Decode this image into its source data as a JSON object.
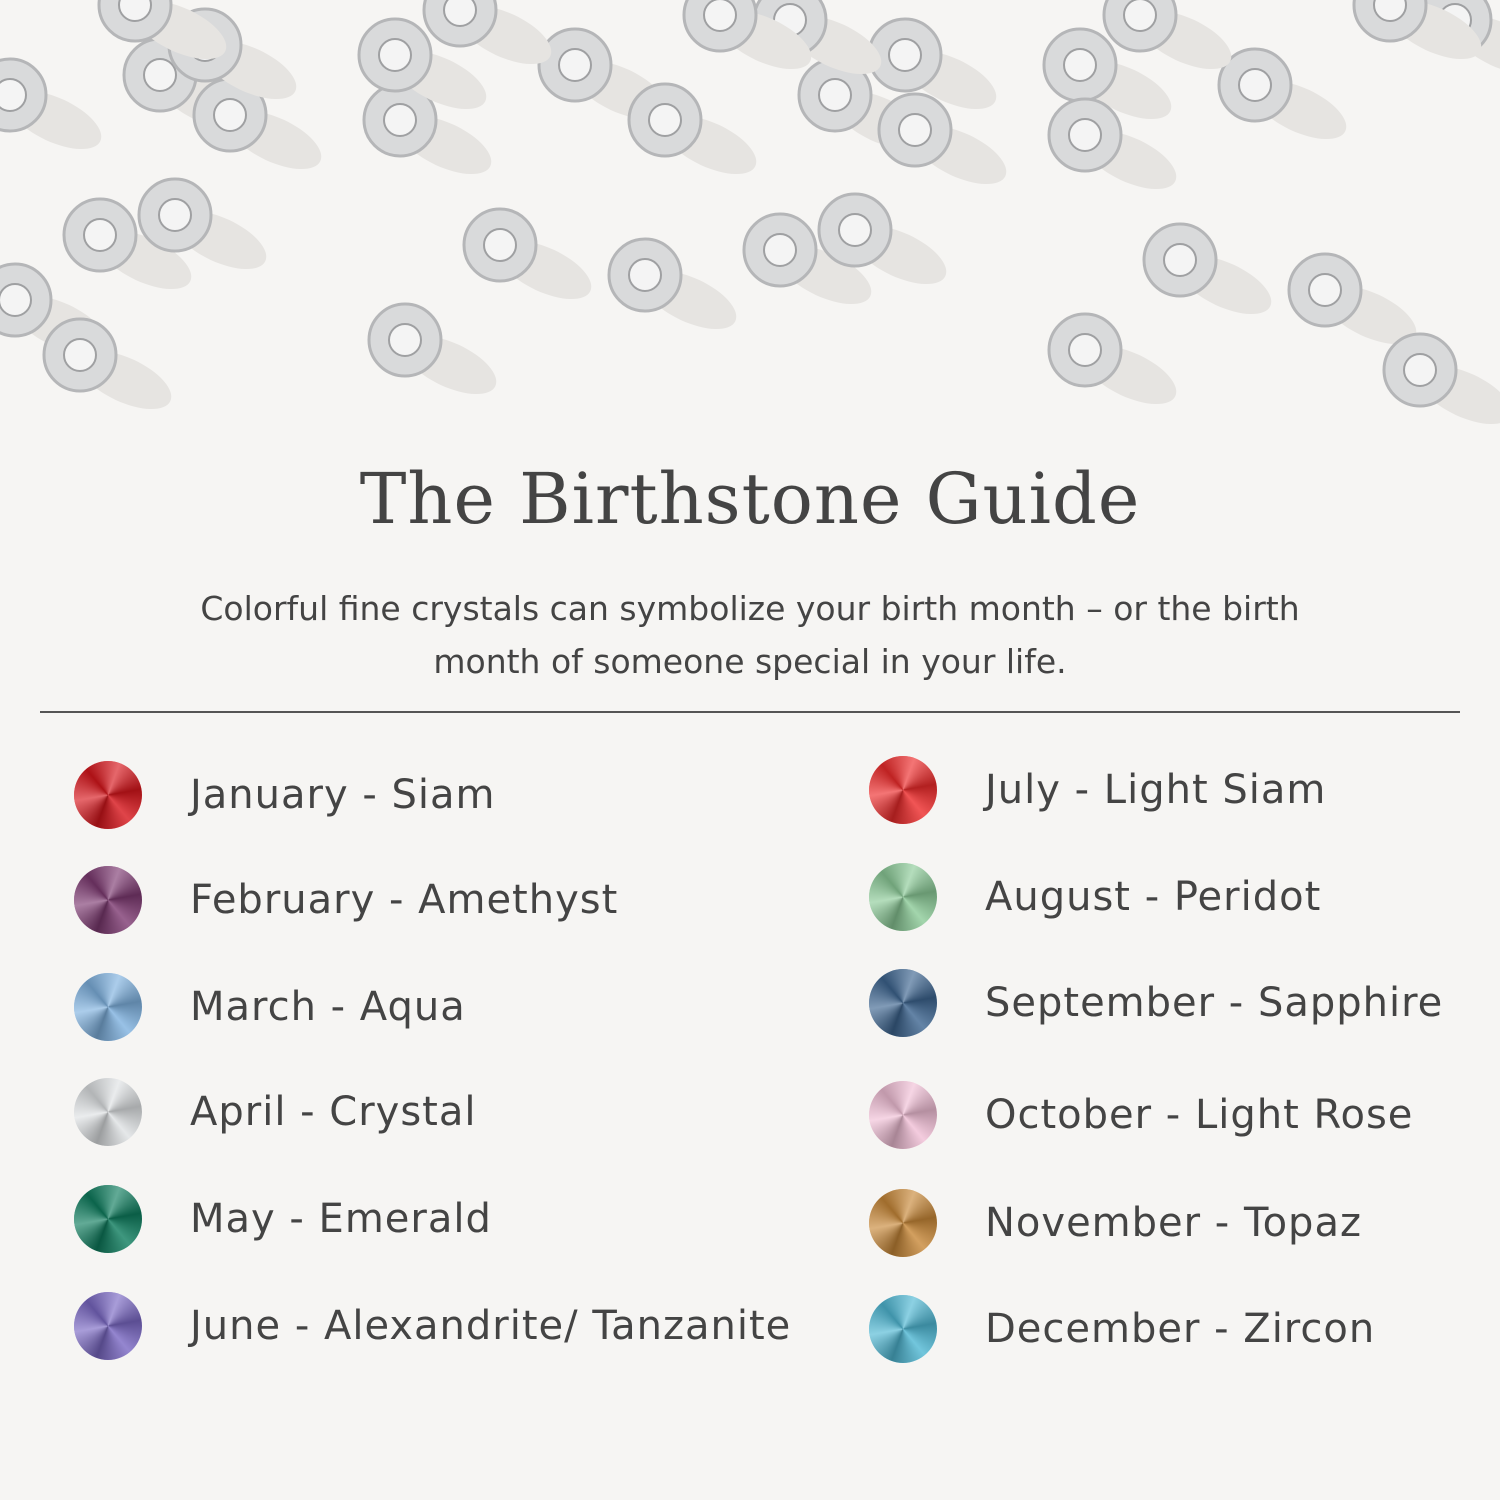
{
  "title": "The Birthstone Guide",
  "subtitle_line1": "Colorful fine crystals can symbolize your birth month – or the birth",
  "subtitle_line2": "month of someone special in your life.",
  "left_column": [
    {
      "label": "January - Siam",
      "color": "#d8161c"
    },
    {
      "label": "February - Amethyst",
      "color": "#7e3a72"
    },
    {
      "label": "March - Aqua",
      "color": "#7fb2e0"
    },
    {
      "label": "April - Crystal",
      "color": "#dfe2e4"
    },
    {
      "label": "May - Emerald",
      "color": "#0e7d5e"
    },
    {
      "label": "June - Alexandrite/ Tanzanite",
      "color": "#7a68c4"
    }
  ],
  "right_column": [
    {
      "label": "July - Light Siam",
      "color": "#ee2b2b"
    },
    {
      "label": "August - Peridot",
      "color": "#8ccb98"
    },
    {
      "label": "September - Sapphire",
      "color": "#3d6590"
    },
    {
      "label": "October - Light Rose",
      "color": "#f1bfd6"
    },
    {
      "label": "November - Topaz",
      "color": "#c88838"
    },
    {
      "label": "December - Zircon",
      "color": "#4fb8d4"
    }
  ]
}
